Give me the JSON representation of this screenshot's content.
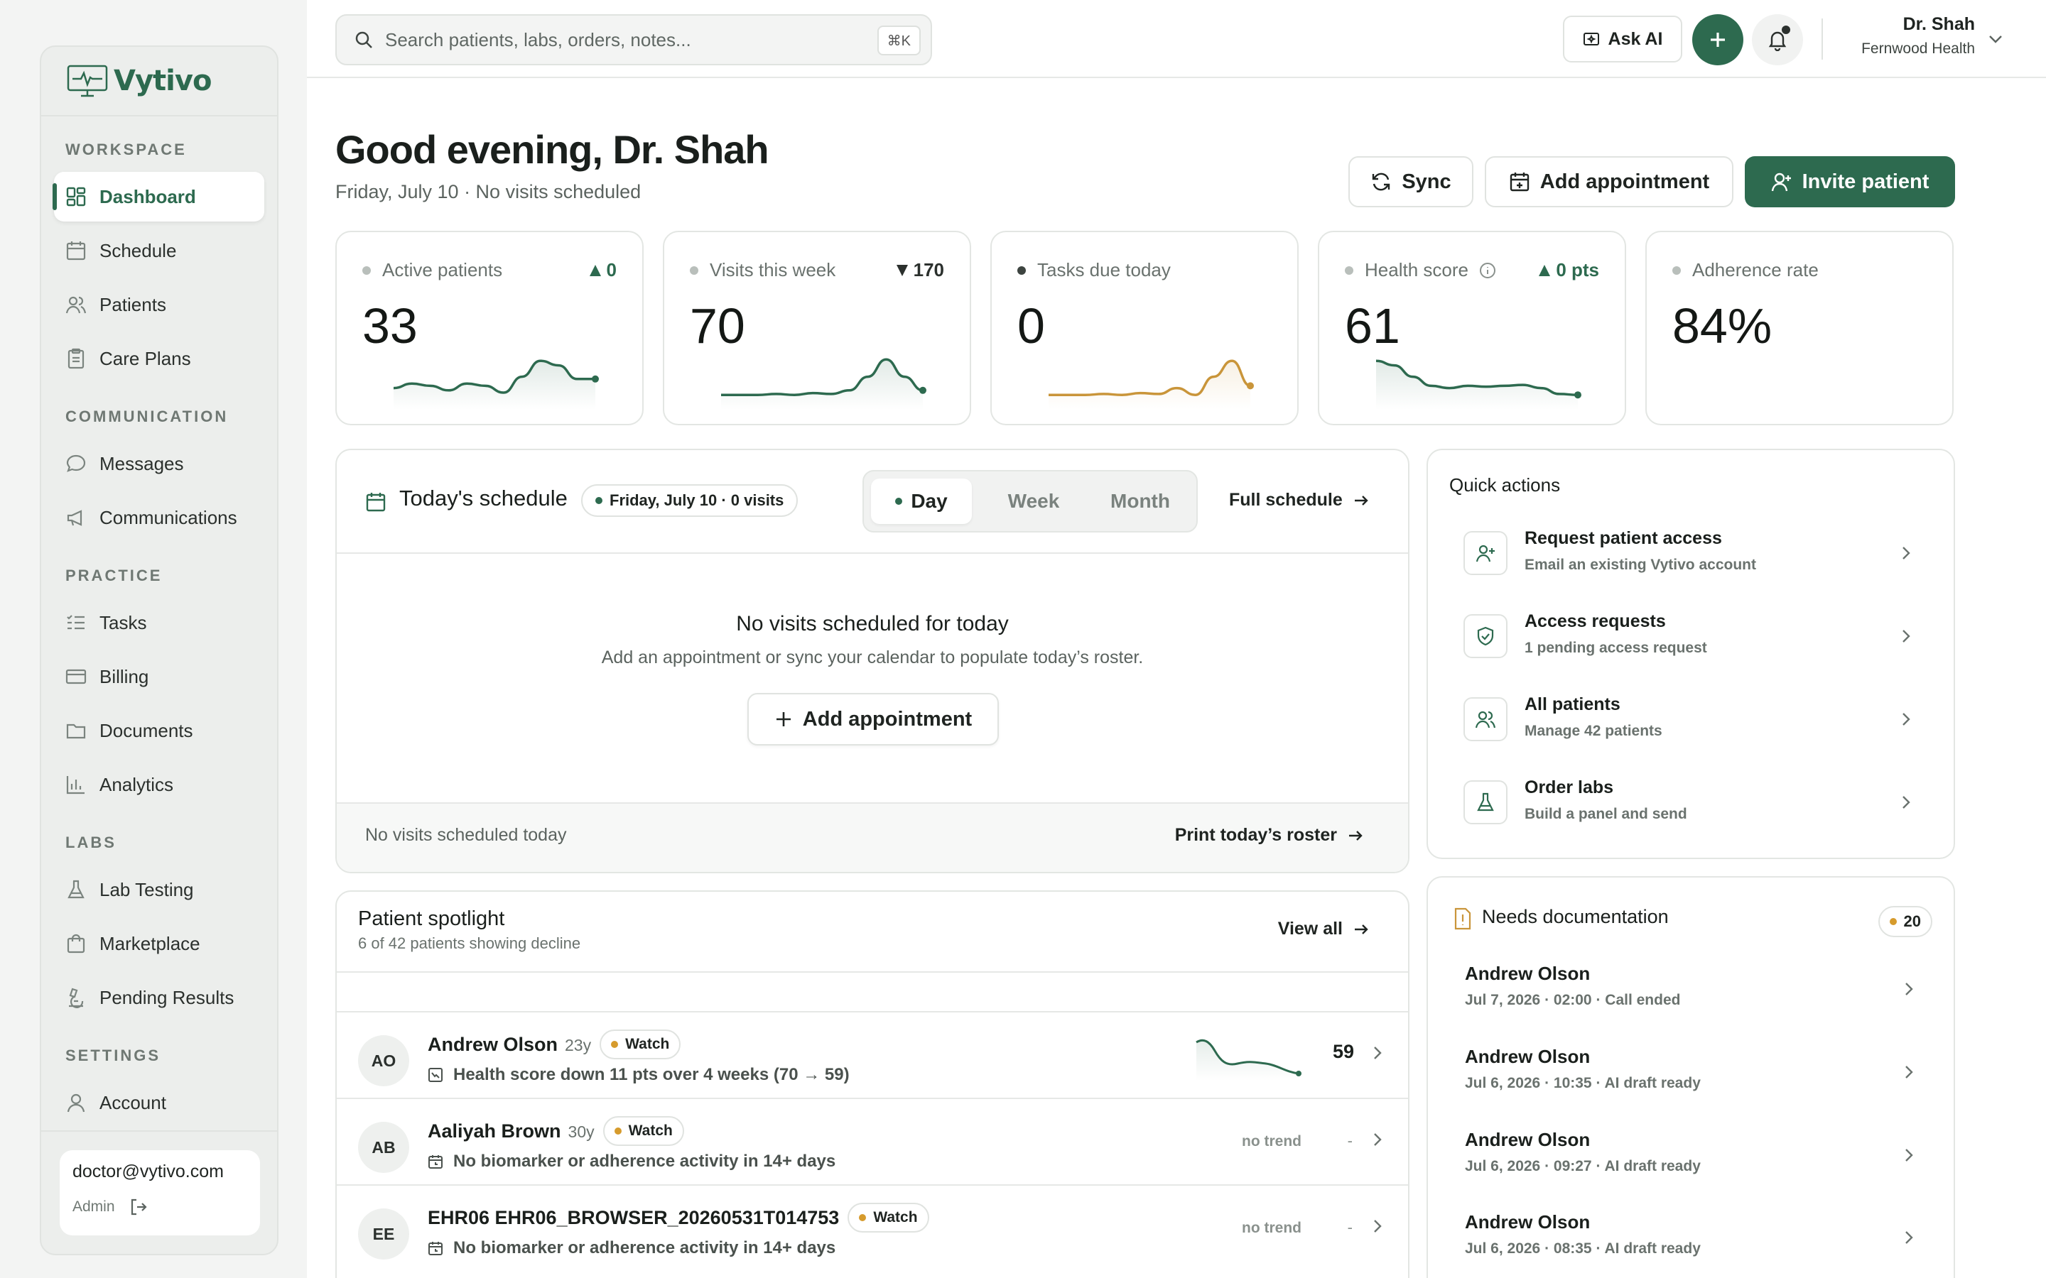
{
  "app": {
    "name": "Vytivo"
  },
  "sidebar": {
    "sections": {
      "workspace": "WORKSPACE",
      "communication": "COMMUNICATION",
      "practice": "PRACTICE",
      "labs": "LABS",
      "settings": "SETTINGS"
    },
    "items": {
      "dashboard": "Dashboard",
      "schedule": "Schedule",
      "patients": "Patients",
      "care_plans": "Care Plans",
      "messages": "Messages",
      "communications": "Communications",
      "tasks": "Tasks",
      "billing": "Billing",
      "documents": "Documents",
      "analytics": "Analytics",
      "lab_testing": "Lab Testing",
      "marketplace": "Marketplace",
      "pending_results": "Pending Results",
      "account": "Account"
    },
    "active": "dashboard",
    "user": {
      "email": "doctor@vytivo.com",
      "role": "Admin"
    }
  },
  "topbar": {
    "search_placeholder": "Search patients, labs, orders, notes...",
    "shortcut": "⌘K",
    "ask_ai": "Ask AI",
    "account_name": "Dr. Shah",
    "account_org": "Fernwood Health"
  },
  "header": {
    "greeting": "Good evening, Dr. Shah",
    "date_line": "Friday, July 10 · No visits scheduled",
    "sync_label": "Sync",
    "add_appointment_label": "Add appointment",
    "invite_label": "Invite patient"
  },
  "stats": [
    {
      "label": "Active patients",
      "value": "33",
      "delta": "0",
      "delta_dir": "up",
      "trend": [
        0.35,
        0.45,
        0.4,
        0.3,
        0.45,
        0.4,
        0.25,
        0.6,
        0.95,
        0.85,
        0.55,
        0.55
      ]
    },
    {
      "label": "Visits this week",
      "value": "70",
      "delta": "170",
      "delta_dir": "down",
      "trend": [
        0.2,
        0.2,
        0.2,
        0.22,
        0.2,
        0.24,
        0.22,
        0.3,
        0.6,
        0.98,
        0.6,
        0.3
      ]
    },
    {
      "label": "Tasks due today",
      "value": "0",
      "delta": "",
      "delta_dir": "",
      "trend": [
        0.2,
        0.2,
        0.2,
        0.22,
        0.2,
        0.24,
        0.22,
        0.35,
        0.2,
        0.6,
        0.95,
        0.4
      ]
    },
    {
      "label": "Health score",
      "value": "61",
      "delta": "0 pts",
      "delta_dir": "up",
      "trend": [
        0.95,
        0.85,
        0.6,
        0.4,
        0.35,
        0.4,
        0.38,
        0.4,
        0.42,
        0.35,
        0.22,
        0.2
      ]
    },
    {
      "label": "Adherence rate",
      "value": "84%",
      "delta": "",
      "delta_dir": "",
      "trend": []
    }
  ],
  "schedule": {
    "title": "Today's schedule",
    "badge": "Friday, July 10 · 0 visits",
    "tabs": [
      "Day",
      "Week",
      "Month"
    ],
    "active_tab": "Day",
    "full_schedule": "Full schedule",
    "empty_title": "No visits scheduled for today",
    "empty_sub": "Add an appointment or sync your calendar to populate today’s roster.",
    "empty_button": "Add appointment",
    "footer_text": "No visits scheduled today",
    "print_roster": "Print today’s roster"
  },
  "quick_actions": {
    "title": "Quick actions",
    "items": [
      {
        "label": "Request patient access",
        "sub": "Email an existing Vytivo account",
        "icon": "user-plus-icon"
      },
      {
        "label": "Access requests",
        "sub": "1 pending access request",
        "icon": "shield-icon"
      },
      {
        "label": "All patients",
        "sub": "Manage 42 patients",
        "icon": "users-icon"
      },
      {
        "label": "Order labs",
        "sub": "Build a panel and send",
        "icon": "flask-icon"
      }
    ]
  },
  "spotlight": {
    "title": "Patient spotlight",
    "sub": "6 of 42 patients showing decline",
    "view_all": "View all",
    "rows": [
      {
        "initials": "AO",
        "name": "Andrew Olson",
        "age": "23y",
        "badge": "Watch",
        "note": "Health score down 11 pts over 4 weeks (70 → 59)",
        "score": "59",
        "trend": ""
      },
      {
        "initials": "AB",
        "name": "Aaliyah Brown",
        "age": "30y",
        "badge": "Watch",
        "note": "No biomarker or adherence activity in 14+ days",
        "score": "-",
        "trend": "no trend"
      },
      {
        "initials": "EE",
        "name": "EHR06 EHR06_BROWSER_20260531T014753",
        "age": "",
        "badge": "Watch",
        "note": "No biomarker or adherence activity in 14+ days",
        "score": "-",
        "trend": "no trend"
      }
    ]
  },
  "needs_documentation": {
    "title": "Needs documentation",
    "count": "20",
    "items": [
      {
        "name": "Andrew Olson",
        "sub": "Jul 7, 2026 · 02:00 · Call ended"
      },
      {
        "name": "Andrew Olson",
        "sub": "Jul 6, 2026 · 10:35 · AI draft ready"
      },
      {
        "name": "Andrew Olson",
        "sub": "Jul 6, 2026 · 09:27 · AI draft ready"
      },
      {
        "name": "Andrew Olson",
        "sub": "Jul 6, 2026 · 08:35 · AI draft ready"
      }
    ]
  },
  "colors": {
    "accent": "#2d6a4f",
    "warning": "#d69b2d",
    "bg": "#ffffff"
  }
}
